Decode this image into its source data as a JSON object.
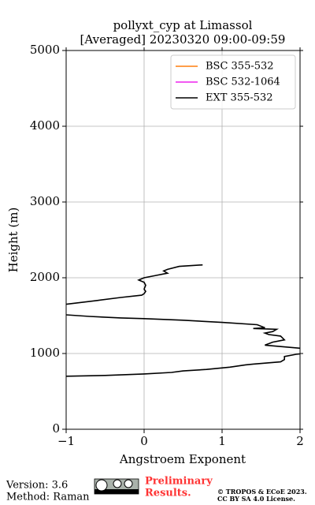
{
  "chart_data": {
    "type": "line",
    "title": [
      "pollyxt_cyp at Limassol",
      "[Averaged] 20230320 09:00-09:59"
    ],
    "x_label": "Angstroem Exponent",
    "y_label": "Height (m)",
    "xlim": [
      -1,
      2
    ],
    "ylim": [
      0,
      5000
    ],
    "xticks": [
      {
        "value": -1,
        "label": "−1"
      },
      0,
      1,
      2
    ],
    "yticks": [
      0,
      1000,
      2000,
      3000,
      4000,
      5000
    ],
    "grid": true,
    "legend": "upper right",
    "series": [
      {
        "name": "BSC 355-532",
        "color": "#ff7f0e",
        "values": [],
        "heights": []
      },
      {
        "name": "BSC 532-1064",
        "color": "#ee22ee",
        "values": [],
        "heights": []
      },
      {
        "name": "EXT 355-532",
        "color": "#000000",
        "values": [
          0.75,
          0.45,
          0.3,
          0.25,
          0.3,
          0.15,
          0.0,
          -0.07,
          0.0,
          0.02,
          0.0,
          0.02,
          0.0,
          -0.03,
          -0.3,
          -0.6,
          -1.0,
          null,
          -1.0,
          -0.7,
          -0.3,
          0.0,
          0.5,
          1.0,
          1.45,
          1.55,
          1.4,
          1.7,
          1.65,
          1.55,
          1.6,
          1.75,
          1.8,
          1.65,
          1.55,
          2.0,
          null,
          2.05,
          1.95,
          1.8,
          1.8,
          1.75,
          1.4,
          1.3,
          1.1,
          0.8,
          0.5,
          0.35,
          0.0,
          -0.5,
          -1.0
        ],
        "heights": [
          2170,
          2150,
          2110,
          2090,
          2060,
          2030,
          2000,
          1970,
          1940,
          1900,
          1850,
          1820,
          1790,
          1770,
          1740,
          1700,
          1650,
          null,
          1510,
          1490,
          1470,
          1460,
          1440,
          1410,
          1380,
          1340,
          1330,
          1320,
          1290,
          1270,
          1250,
          1230,
          1180,
          1150,
          1110,
          1070,
          null,
          1000,
          990,
          960,
          920,
          890,
          860,
          850,
          820,
          790,
          770,
          750,
          730,
          710,
          700
        ]
      }
    ]
  },
  "footer": {
    "version": "Version: 3.6",
    "method": "Method: Raman",
    "status": [
      "Preliminary",
      "Results."
    ],
    "copyright": [
      "© TROPOS & ECoE 2023.",
      "CC BY SA 4.0 License."
    ]
  }
}
